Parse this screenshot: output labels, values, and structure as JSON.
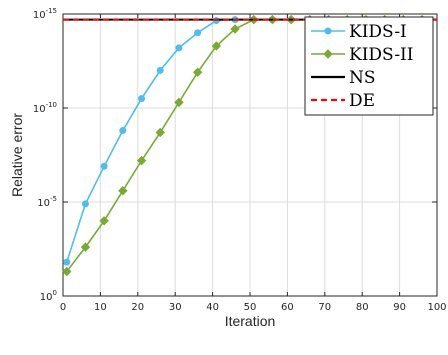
{
  "chart_data": {
    "type": "line",
    "xlabel": "Iteration",
    "ylabel": "Relative  error",
    "xlim": [
      0,
      100
    ],
    "ylim_exp": [
      -15,
      0
    ],
    "yscale": "log",
    "x_ticks": [
      0,
      10,
      20,
      30,
      40,
      50,
      60,
      70,
      80,
      90,
      100
    ],
    "y_ticks_exp": [
      0,
      -5,
      -10,
      -15
    ],
    "y_tick_base": "10",
    "grid": true,
    "legend_position": "top-right",
    "series": [
      {
        "name": "KIDS-I",
        "color": "#4DBEEE",
        "marker": "circle",
        "line_style": "solid",
        "x": [
          1,
          6,
          11,
          16,
          21,
          26,
          31,
          36,
          41,
          46,
          51,
          56,
          61,
          66,
          71,
          76,
          81,
          86,
          91,
          96
        ],
        "y_exp": [
          -1.8,
          -4.9,
          -6.9,
          -8.8,
          -10.5,
          -12.0,
          -13.2,
          -14.0,
          -14.65,
          -14.7,
          -14.7,
          -14.7,
          -14.7,
          -14.7,
          -14.7,
          -14.7,
          -14.7,
          -14.7,
          -14.7,
          -14.7
        ]
      },
      {
        "name": "KIDS-II",
        "color": "#77AC30",
        "marker": "diamond",
        "line_style": "solid",
        "x": [
          1,
          6,
          11,
          16,
          21,
          26,
          31,
          36,
          41,
          46,
          51,
          56,
          61,
          66,
          71,
          76,
          81,
          86,
          91,
          96
        ],
        "y_exp": [
          -1.3,
          -2.6,
          -4.0,
          -5.6,
          -7.2,
          -8.7,
          -10.3,
          -11.9,
          -13.3,
          -14.2,
          -14.7,
          -14.7,
          -14.7,
          -14.7,
          -14.7,
          -14.7,
          -14.7,
          -14.7,
          -14.7,
          -14.7
        ]
      },
      {
        "name": "NS",
        "color": "#000000",
        "marker": "none",
        "line_style": "solid",
        "x": [
          0,
          100
        ],
        "y_exp": [
          -14.7,
          -14.7
        ]
      },
      {
        "name": "DE",
        "color": "#FF0000",
        "marker": "none",
        "line_style": "dashed",
        "x": [
          0,
          100
        ],
        "y_exp": [
          -14.7,
          -14.7
        ]
      }
    ]
  }
}
